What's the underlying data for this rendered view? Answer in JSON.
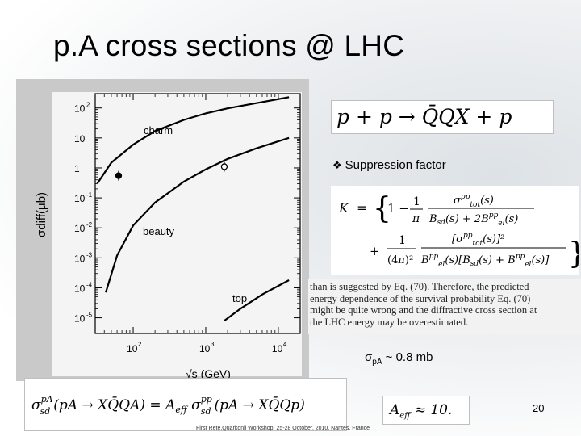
{
  "slide": {
    "title": "p.A cross sections @ LHC",
    "page_number": "20",
    "footer": "First Rete.Quarkonii Workshop, 25-28 October. 2010, Nantes, France"
  },
  "equations": {
    "reaction": "p + p → Q̄QX + p",
    "suppression_label": "Suppression factor",
    "K_line1_prefix": "K  =",
    "K_line1_body": "{ 1 − (1/π) σtot^pp(s) / (Bsd(s) + 2Bel^pp(s))",
    "K_line2_body": "+ 1/(4π)² · [σtot^pp(s)]² / (Bel^pp(s) [Bsd(s) + Bel^pp(s)]) }",
    "sigma_pA_rhs": "σsd^pA(pA → XQ̄QA) = Aeff σsd^pp(pA → XQ̄Qp)",
    "aeff": "Aeff ≈ 10."
  },
  "paper_excerpt": {
    "lines": [
      "than is suggested by Eq. (70). Therefore, the predicted",
      "energy dependence of the survival probability Eq. (70)",
      "might be quite wrong and the diffractive cross section at",
      "the LHC energy may be overestimated."
    ]
  },
  "sigma_note": {
    "prefix": "σ",
    "sub": "pA",
    "suffix": " ~ 0.8 mb"
  },
  "chart_data": {
    "type": "line",
    "xlabel": "√s (GeV)",
    "ylabel": "σdiff(μb)",
    "x_scale": "log",
    "y_scale": "log",
    "xlim": [
      30,
      20000
    ],
    "ylim": [
      3e-06,
      300
    ],
    "x_ticks": [
      {
        "value": 100,
        "base": "10",
        "exp": "2"
      },
      {
        "value": 1000,
        "base": "10",
        "exp": "3"
      },
      {
        "value": 10000,
        "base": "10",
        "exp": "4"
      }
    ],
    "y_ticks": [
      {
        "value": 100,
        "base": "10",
        "exp": "2"
      },
      {
        "value": 10,
        "base": "10",
        "exp": ""
      },
      {
        "value": 1,
        "base": "1",
        "exp": ""
      },
      {
        "value": 0.1,
        "base": "10",
        "exp": "-1"
      },
      {
        "value": 0.01,
        "base": "10",
        "exp": "-2"
      },
      {
        "value": 0.001,
        "base": "10",
        "exp": "-3"
      },
      {
        "value": 0.0001,
        "base": "10",
        "exp": "-4"
      },
      {
        "value": 1e-05,
        "base": "10",
        "exp": "-5"
      }
    ],
    "series": [
      {
        "name": "charm",
        "x": [
          32,
          50,
          100,
          200,
          500,
          1000,
          2000,
          5000,
          14000
        ],
        "y": [
          0.3,
          1.5,
          6,
          17,
          40,
          66,
          97,
          145,
          230
        ]
      },
      {
        "name": "beauty",
        "x": [
          42,
          60,
          100,
          200,
          500,
          1000,
          2000,
          5000,
          14000
        ],
        "y": [
          7e-05,
          0.0012,
          0.012,
          0.07,
          0.35,
          0.9,
          2.0,
          4.5,
          10
        ]
      },
      {
        "name": "top",
        "x": [
          1800,
          3000,
          6000,
          14000
        ],
        "y": [
          8e-06,
          2e-05,
          6e-05,
          0.00018
        ]
      }
    ],
    "points": [
      {
        "x": 63,
        "y": 0.55,
        "filled": true
      },
      {
        "x": 1800,
        "y": 1.1,
        "filled": false
      }
    ]
  }
}
